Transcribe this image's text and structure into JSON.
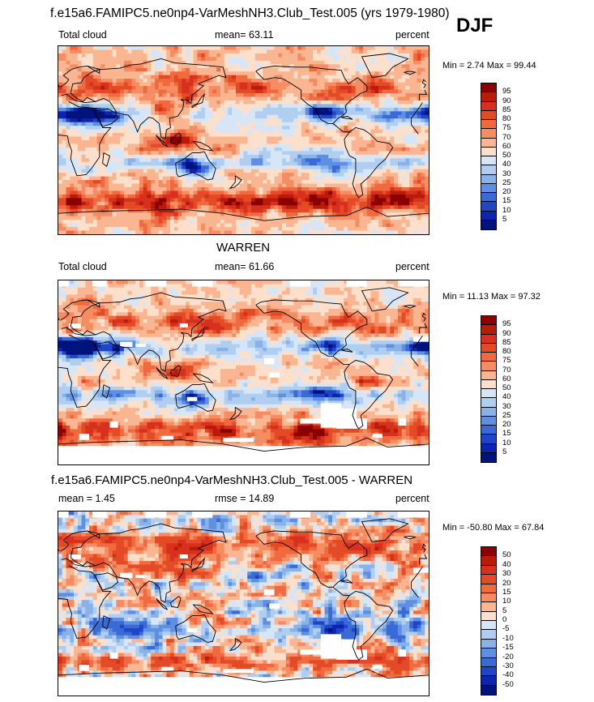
{
  "header": {
    "title": "f.e15a6.FAMIPC5.ne0np4-VarMeshNH3.Club_Test.005 (yrs 1979-1980)",
    "season": "DJF"
  },
  "panels": [
    {
      "id": "model",
      "section_title": "",
      "left_label": "Total cloud",
      "center_label": "mean=  63.11",
      "units": "percent",
      "minmax": "Min =   2.74 Max =  99.44",
      "colorbar": {
        "labels": [
          "95",
          "90",
          "85",
          "80",
          "75",
          "70",
          "60",
          "50",
          "40",
          "30",
          "25",
          "20",
          "15",
          "10",
          "5"
        ],
        "colors": [
          "#8b0000",
          "#b81c08",
          "#d7301f",
          "#e34a26",
          "#f16a3f",
          "#f58c62",
          "#fab591",
          "#fde0cc",
          "#d6e6f7",
          "#b0cff0",
          "#89b2e9",
          "#5f8fe0",
          "#3a6ad6",
          "#1f45c8",
          "#0c24b0",
          "#00137d"
        ]
      },
      "map": {
        "mean": 63.11,
        "min": 2.74,
        "max": 99.44,
        "color_scheme": "cloud"
      }
    },
    {
      "id": "obs",
      "section_title": "WARREN",
      "left_label": "Total cloud",
      "center_label": "mean=  61.66",
      "units": "percent",
      "minmax": "Min =  11.13 Max =  97.32",
      "colorbar": {
        "labels": [
          "95",
          "90",
          "85",
          "80",
          "75",
          "70",
          "60",
          "50",
          "40",
          "30",
          "25",
          "20",
          "15",
          "10",
          "5"
        ],
        "colors": [
          "#8b0000",
          "#b81c08",
          "#d7301f",
          "#e34a26",
          "#f16a3f",
          "#f58c62",
          "#fab591",
          "#fde0cc",
          "#d6e6f7",
          "#b0cff0",
          "#89b2e9",
          "#5f8fe0",
          "#3a6ad6",
          "#1f45c8",
          "#0c24b0",
          "#00137d"
        ]
      },
      "map": {
        "mean": 61.66,
        "min": 11.13,
        "max": 97.32,
        "color_scheme": "cloud"
      }
    },
    {
      "id": "diff",
      "section_title": "f.e15a6.FAMIPC5.ne0np4-VarMeshNH3.Club_Test.005 - WARREN",
      "left_label": "mean =   1.45",
      "center_label": "rmse =  14.89",
      "units": "percent",
      "minmax": "Min = -50.80 Max =  67.84",
      "colorbar": {
        "labels": [
          "50",
          "40",
          "30",
          "20",
          "15",
          "10",
          "5",
          "0",
          "-5",
          "-10",
          "-15",
          "-20",
          "-30",
          "-40",
          "-50"
        ],
        "colors": [
          "#8b0000",
          "#b81c08",
          "#d7301f",
          "#e34a26",
          "#f16a3f",
          "#f58c62",
          "#fab591",
          "#fde0cc",
          "#d6e6f7",
          "#b0cff0",
          "#89b2e9",
          "#5f8fe0",
          "#3a6ad6",
          "#1f45c8",
          "#0c24b0",
          "#00137d"
        ]
      },
      "map": {
        "mean": 1.45,
        "min": -50.8,
        "max": 67.84,
        "color_scheme": "diff"
      }
    }
  ]
}
